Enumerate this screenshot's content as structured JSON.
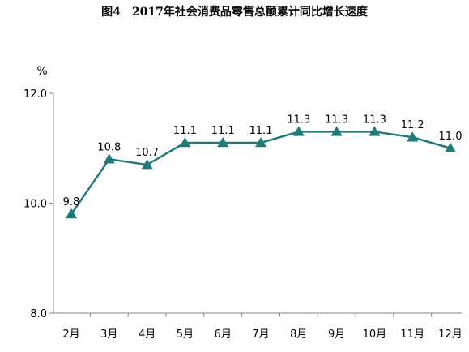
{
  "chart_data": {
    "type": "line",
    "title": "图4　2017年社会消费品零售总额累计同比增长速度",
    "ylabel": "%",
    "categories": [
      "2月",
      "3月",
      "4月",
      "5月",
      "6月",
      "7月",
      "8月",
      "9月",
      "10月",
      "11月",
      "12月"
    ],
    "values": [
      9.8,
      10.8,
      10.7,
      11.1,
      11.1,
      11.1,
      11.3,
      11.3,
      11.3,
      11.2,
      11.0
    ],
    "data_labels": [
      "9.8",
      "10.8",
      "10.7",
      "11.1",
      "11.1",
      "11.1",
      "11.3",
      "11.3",
      "11.3",
      "11.2",
      "11.0"
    ],
    "ylim": [
      8.0,
      12.0
    ],
    "yticks": [
      "8.0",
      "10.0",
      "12.0"
    ],
    "line_color": "#1f7a78",
    "marker": "triangle",
    "grid": false,
    "legend": "none"
  }
}
